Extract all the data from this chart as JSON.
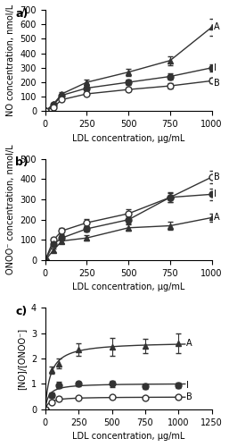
{
  "x_conc": [
    0,
    50,
    100,
    250,
    500,
    750,
    1000
  ],
  "no_A": [
    0,
    50,
    120,
    200,
    270,
    350,
    580
  ],
  "no_I": [
    0,
    45,
    110,
    160,
    200,
    240,
    300
  ],
  "no_B": [
    0,
    30,
    80,
    120,
    150,
    175,
    210
  ],
  "no_A_err": [
    0,
    10,
    15,
    20,
    25,
    30,
    60
  ],
  "no_I_err": [
    0,
    8,
    12,
    15,
    18,
    22,
    25
  ],
  "no_B_err": [
    0,
    6,
    10,
    12,
    14,
    16,
    18
  ],
  "onoo_A": [
    0,
    50,
    95,
    110,
    160,
    170,
    210
  ],
  "onoo_I": [
    0,
    80,
    110,
    155,
    200,
    310,
    325
  ],
  "onoo_B": [
    0,
    100,
    145,
    185,
    230,
    310,
    410
  ],
  "onoo_A_err": [
    0,
    8,
    10,
    12,
    15,
    18,
    20
  ],
  "onoo_I_err": [
    0,
    10,
    12,
    15,
    18,
    22,
    28
  ],
  "onoo_B_err": [
    0,
    12,
    15,
    18,
    22,
    25,
    30
  ],
  "x_ratio": [
    0,
    50,
    100,
    250,
    500,
    750,
    1000
  ],
  "ratio_A": [
    0,
    1.55,
    1.8,
    2.35,
    2.45,
    2.5,
    2.6
  ],
  "ratio_I": [
    0,
    0.55,
    0.95,
    1.0,
    1.0,
    0.9,
    0.95
  ],
  "ratio_B": [
    0,
    0.28,
    0.42,
    0.45,
    0.47,
    0.45,
    0.47
  ],
  "ratio_A_err": [
    0,
    0.15,
    0.2,
    0.25,
    0.35,
    0.28,
    0.4
  ],
  "ratio_I_err": [
    0,
    0.1,
    0.12,
    0.1,
    0.12,
    0.1,
    0.1
  ],
  "ratio_B_err": [
    0,
    0.05,
    0.06,
    0.05,
    0.04,
    0.05,
    0.04
  ],
  "panel_labels": [
    "a)",
    "b)",
    "c)"
  ],
  "xlabel": "LDL concentration, μg/mL",
  "no_ylabel": "NO concentration, nmol/L",
  "onoo_ylabel": "ONOO⁻ concentration, nmol/L",
  "ratio_ylabel": "[NO]/[ONOO⁻]",
  "no_ylim": [
    0,
    700
  ],
  "onoo_ylim": [
    0,
    500
  ],
  "ratio_ylim": [
    0,
    4.0
  ],
  "ratio_xlim": [
    0,
    1250
  ],
  "line_color": "#333333",
  "marker_A": "^",
  "marker_I": "o",
  "marker_B": "o",
  "markersize": 5,
  "label_A": "A",
  "label_I": "I",
  "label_B": "B"
}
